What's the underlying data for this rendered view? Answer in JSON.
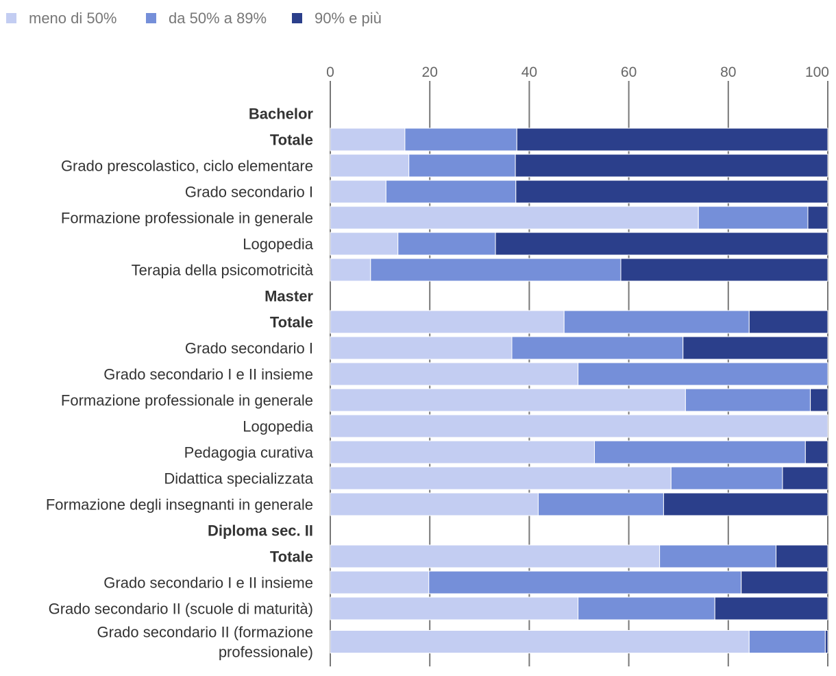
{
  "chart_data": {
    "type": "bar",
    "orientation": "horizontal",
    "stacked": true,
    "xlim": [
      0,
      100
    ],
    "xticks": [
      0,
      20,
      40,
      60,
      80,
      100
    ],
    "legend": "top-left",
    "grid": true,
    "series": [
      {
        "name": "meno di 50%",
        "color": "#c3cdf2"
      },
      {
        "name": "da 50% a 89%",
        "color": "#758fd9"
      },
      {
        "name": "90% e più",
        "color": "#2b3f8b"
      }
    ],
    "rows": [
      {
        "label": "Bachelor",
        "header": true
      },
      {
        "label": "Totale",
        "bold": true,
        "values": [
          15,
          22.5,
          62.5
        ]
      },
      {
        "label": "Grado prescolastico, ciclo elementare",
        "values": [
          15.8,
          21.4,
          62.8
        ]
      },
      {
        "label": "Grado secondario I",
        "values": [
          11.2,
          26.1,
          62.7
        ]
      },
      {
        "label": "Formazione professionale in generale",
        "values": [
          74,
          22,
          4
        ]
      },
      {
        "label": "Logopedia",
        "values": [
          13.6,
          19.6,
          66.8
        ]
      },
      {
        "label": "Terapia della psicomotricità",
        "values": [
          8.1,
          50.3,
          41.6
        ]
      },
      {
        "label": "Master",
        "header": true
      },
      {
        "label": "Totale",
        "bold": true,
        "values": [
          47,
          37.2,
          15.8
        ]
      },
      {
        "label": "Grado secondario I",
        "values": [
          36.5,
          34.4,
          29.1
        ]
      },
      {
        "label": "Grado secondario I e II insieme",
        "values": [
          49.8,
          50.2,
          0
        ]
      },
      {
        "label": "Formazione professionale in generale",
        "values": [
          71.4,
          25.1,
          3.5
        ]
      },
      {
        "label": "Logopedia",
        "values": [
          100,
          0,
          0
        ]
      },
      {
        "label": "Pedagogia curativa",
        "values": [
          53.1,
          42.4,
          4.5
        ]
      },
      {
        "label": "Didattica specializzata",
        "values": [
          68.5,
          22.4,
          9.1
        ]
      },
      {
        "label": "Formazione degli insegnanti in generale",
        "values": [
          41.8,
          25.2,
          33
        ]
      },
      {
        "label": "Diploma sec. II",
        "header": true
      },
      {
        "label": "Totale",
        "bold": true,
        "values": [
          66.2,
          23.4,
          10.4
        ]
      },
      {
        "label": "Grado secondario I e II insieme",
        "values": [
          19.8,
          62.8,
          17.4
        ]
      },
      {
        "label": "Grado secondario II (scuole di maturità)",
        "values": [
          49.8,
          27.5,
          22.7
        ]
      },
      {
        "label": "Grado secondario II (formazione professionale)",
        "lines": [
          "Grado secondario II (formazione",
          "professionale)"
        ],
        "values": [
          84.2,
          15.3,
          0.5
        ]
      }
    ]
  }
}
